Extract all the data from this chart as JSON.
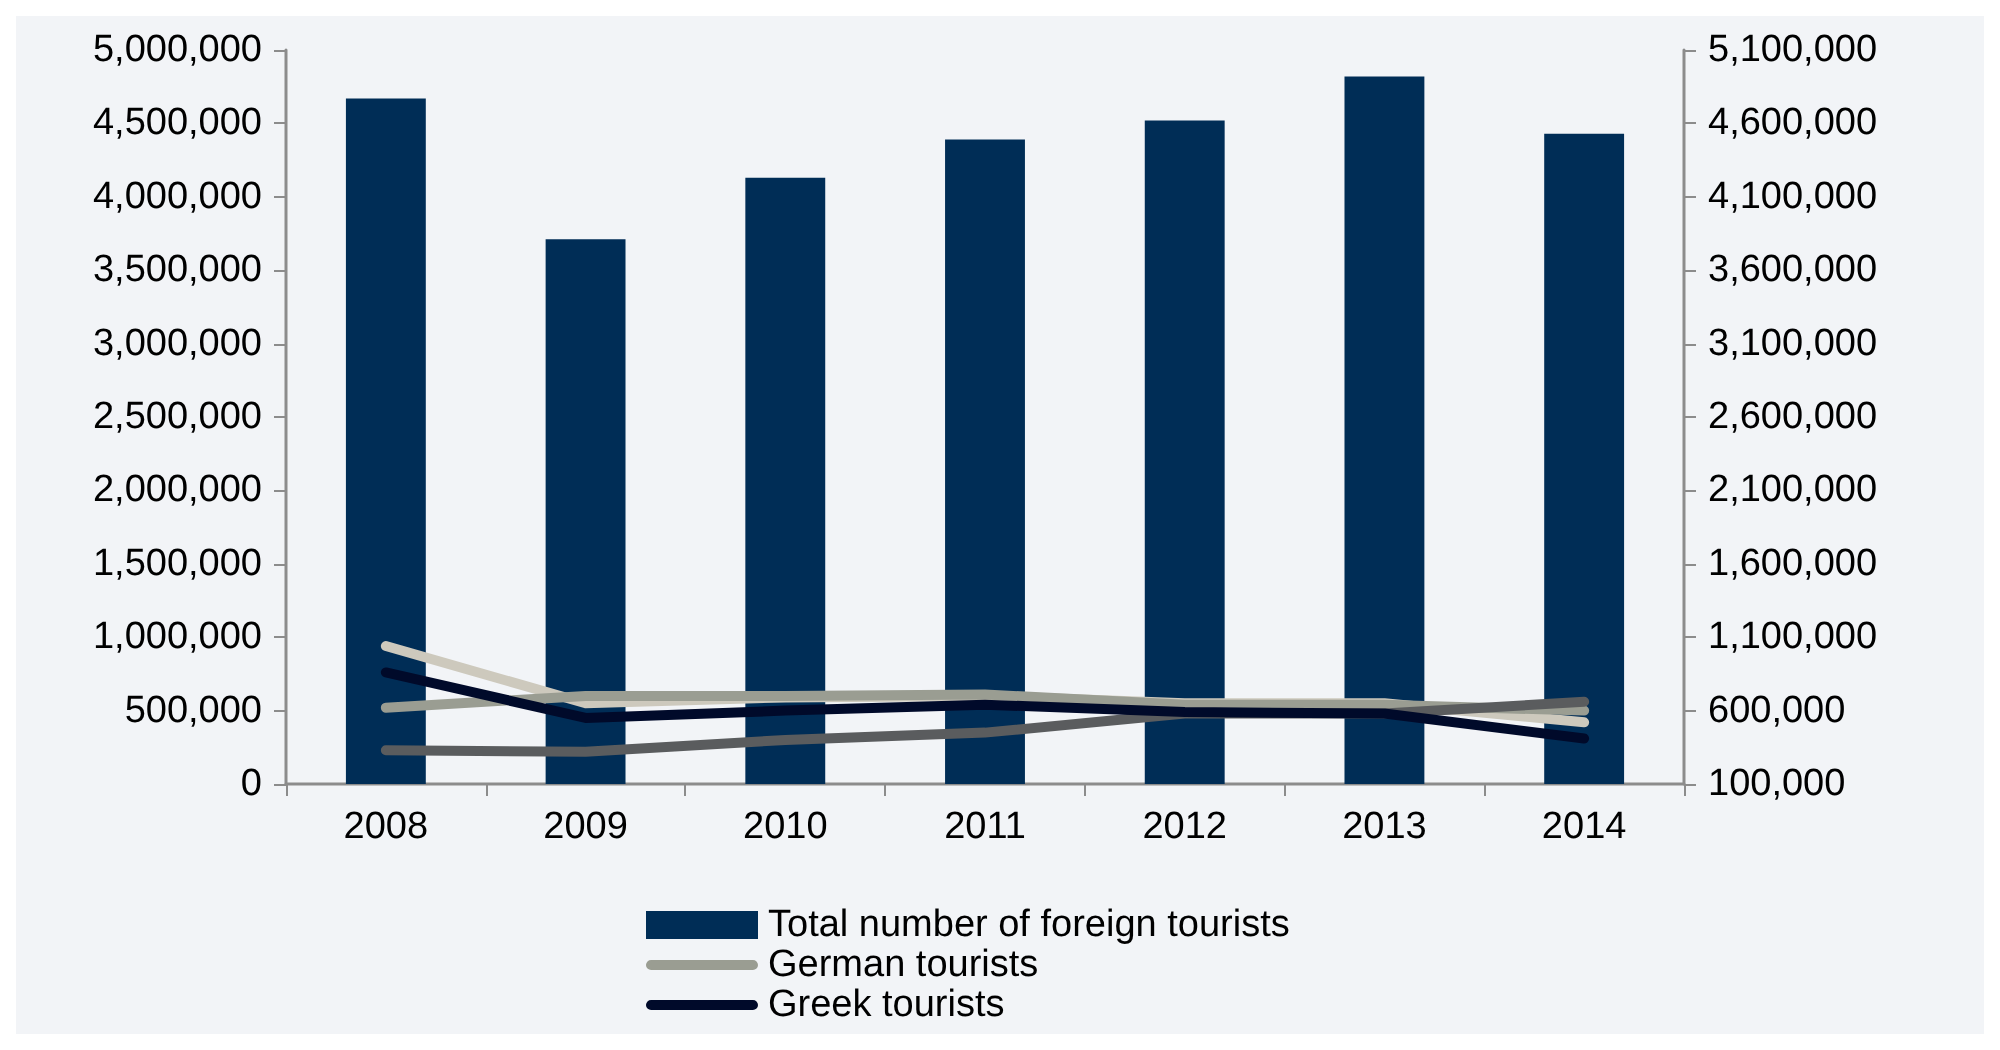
{
  "chart_data": {
    "type": "bar",
    "categories": [
      "2008",
      "2009",
      "2010",
      "2011",
      "2012",
      "2013",
      "2014"
    ],
    "series": [
      {
        "name": "Total number of foreign tourists",
        "color": "#002d56",
        "values": [
          4670000,
          3710000,
          4130000,
          4390000,
          4520000,
          4820000,
          4430000
        ]
      },
      {
        "type": "line",
        "axis": "y2",
        "color": "#cdc9bd",
        "values": [
          1040000,
          650000,
          690000,
          700000,
          650000,
          650000,
          520000
        ]
      },
      {
        "name": "German tourists",
        "type": "line",
        "axis": "y2",
        "color": "#9a9d92",
        "values": [
          620000,
          700000,
          700000,
          710000,
          640000,
          640000,
          600000
        ]
      },
      {
        "type": "line",
        "axis": "y2",
        "color": "#5a5c5e",
        "values": [
          330000,
          320000,
          400000,
          450000,
          580000,
          580000,
          660000
        ]
      },
      {
        "name": "Greek tourists",
        "type": "line",
        "axis": "y2",
        "color": "#000a2a",
        "values": [
          860000,
          550000,
          600000,
          640000,
          590000,
          580000,
          410000
        ]
      }
    ],
    "ylim": [
      0,
      5000000
    ],
    "yticks": [
      {
        "value": 0,
        "label": "0"
      },
      {
        "value": 500000,
        "label": "500,000"
      },
      {
        "value": 1000000,
        "label": "1,000,000"
      },
      {
        "value": 1500000,
        "label": "1,500,000"
      },
      {
        "value": 2000000,
        "label": "2,000,000"
      },
      {
        "value": 2500000,
        "label": "2,500,000"
      },
      {
        "value": 3000000,
        "label": "3,000,000"
      },
      {
        "value": 3500000,
        "label": "3,500,000"
      },
      {
        "value": 4000000,
        "label": "4,000,000"
      },
      {
        "value": 4500000,
        "label": "4,500,000"
      },
      {
        "value": 5000000,
        "label": "5,000,000"
      }
    ],
    "y2lim": [
      100000,
      5100000
    ],
    "y2ticks": [
      {
        "value": 100000,
        "label": "100,000"
      },
      {
        "value": 600000,
        "label": "600,000"
      },
      {
        "value": 1100000,
        "label": "1,100,000"
      },
      {
        "value": 1600000,
        "label": "1,600,000"
      },
      {
        "value": 2100000,
        "label": "2,100,000"
      },
      {
        "value": 2600000,
        "label": "2,600,000"
      },
      {
        "value": 3100000,
        "label": "3,100,000"
      },
      {
        "value": 3600000,
        "label": "3,600,000"
      },
      {
        "value": 4100000,
        "label": "4,100,000"
      },
      {
        "value": 4600000,
        "label": "4,600,000"
      },
      {
        "value": 5100000,
        "label": "5,100,000"
      }
    ],
    "grid": false,
    "legend": "bottom",
    "marker": "none",
    "line_style": "solid"
  }
}
